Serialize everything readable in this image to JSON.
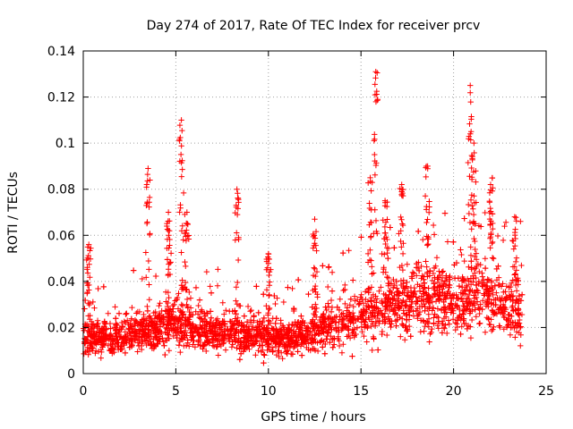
{
  "chart_data": {
    "type": "scatter",
    "title": "Day 274 of 2017, Rate Of TEC Index for receiver prcv",
    "xlabel": "GPS time / hours",
    "ylabel": "ROTI / TECUs",
    "xlim": [
      0,
      25
    ],
    "ylim": [
      0,
      0.14
    ],
    "x_ticks": [
      0,
      5,
      10,
      15,
      20,
      25
    ],
    "x_tick_labels": [
      "0",
      "5",
      "10",
      "15",
      "20",
      "25"
    ],
    "y_ticks": [
      0,
      0.02,
      0.04,
      0.06,
      0.08,
      0.1,
      0.12,
      0.14
    ],
    "y_tick_labels": [
      "0",
      "0.02",
      "0.04",
      "0.06",
      "0.08",
      "0.1",
      "0.12",
      "0.14"
    ],
    "grid": true,
    "marker": "plus",
    "color": "#ff0000",
    "series": [
      {
        "name": "ROTI",
        "x_range": [
          0,
          23.7
        ],
        "baseline_profile": [
          [
            0,
            0.016
          ],
          [
            2,
            0.016
          ],
          [
            3,
            0.018
          ],
          [
            4,
            0.02
          ],
          [
            5,
            0.022
          ],
          [
            6,
            0.02
          ],
          [
            7,
            0.018
          ],
          [
            8,
            0.018
          ],
          [
            9,
            0.017
          ],
          [
            10,
            0.016
          ],
          [
            11,
            0.015
          ],
          [
            12,
            0.017
          ],
          [
            13,
            0.02
          ],
          [
            14,
            0.022
          ],
          [
            15,
            0.026
          ],
          [
            16,
            0.028
          ],
          [
            17,
            0.03
          ],
          [
            18,
            0.033
          ],
          [
            19,
            0.033
          ],
          [
            20,
            0.03
          ],
          [
            21,
            0.035
          ],
          [
            22,
            0.032
          ],
          [
            23,
            0.028
          ],
          [
            23.7,
            0.026
          ]
        ],
        "spikes": [
          {
            "x": 0.3,
            "peak": 0.056
          },
          {
            "x": 3.5,
            "peak": 0.089
          },
          {
            "x": 4.6,
            "peak": 0.07
          },
          {
            "x": 5.3,
            "peak": 0.11
          },
          {
            "x": 5.6,
            "peak": 0.07
          },
          {
            "x": 8.3,
            "peak": 0.08
          },
          {
            "x": 10.0,
            "peak": 0.052
          },
          {
            "x": 12.5,
            "peak": 0.067
          },
          {
            "x": 15.5,
            "peak": 0.085
          },
          {
            "x": 15.8,
            "peak": 0.131
          },
          {
            "x": 16.3,
            "peak": 0.075
          },
          {
            "x": 17.2,
            "peak": 0.082
          },
          {
            "x": 18.6,
            "peak": 0.09
          },
          {
            "x": 20.9,
            "peak": 0.125
          },
          {
            "x": 21.1,
            "peak": 0.1
          },
          {
            "x": 22.0,
            "peak": 0.082
          },
          {
            "x": 23.3,
            "peak": 0.068
          }
        ],
        "point_count": 3200
      }
    ]
  }
}
